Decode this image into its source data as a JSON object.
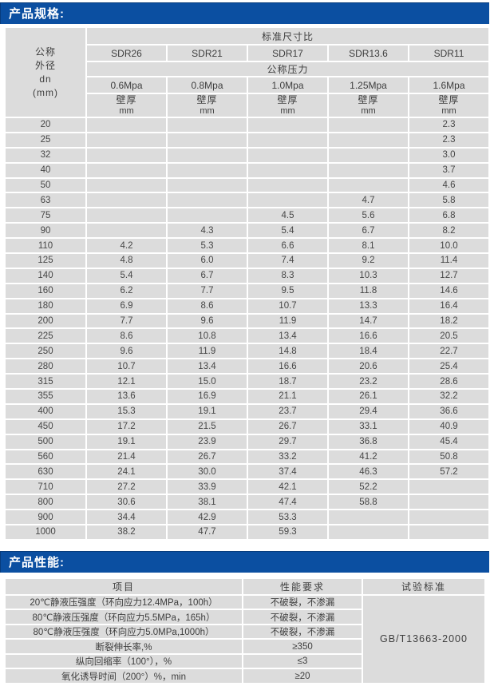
{
  "colors": {
    "section_bar_blue": "#0b4fa1",
    "section_bar_edge": "#083c7c",
    "cell_gray": "#dcdcdc",
    "page_background": "#ffffff",
    "title_text": "#ffffff",
    "body_text": "#3e3e3e"
  },
  "spec_section": {
    "title": "产品规格:",
    "table": {
      "corner_label_lines": [
        "公称",
        "外径",
        "dn",
        "(mm)"
      ],
      "sdr_group_label": "标准尺寸比",
      "sdr_labels": [
        "SDR26",
        "SDR21",
        "SDR17",
        "SDR13.6",
        "SDR11"
      ],
      "pressure_group_label": "公称压力",
      "pressure_labels": [
        "0.6Mpa",
        "0.8Mpa",
        "1.0Mpa",
        "1.25Mpa",
        "1.6Mpa"
      ],
      "thickness_label": "壁厚",
      "thickness_unit": "mm",
      "rows": [
        [
          "20",
          "",
          "",
          "",
          "",
          "2.3"
        ],
        [
          "25",
          "",
          "",
          "",
          "",
          "2.3"
        ],
        [
          "32",
          "",
          "",
          "",
          "",
          "3.0"
        ],
        [
          "40",
          "",
          "",
          "",
          "",
          "3.7"
        ],
        [
          "50",
          "",
          "",
          "",
          "",
          "4.6"
        ],
        [
          "63",
          "",
          "",
          "",
          "4.7",
          "5.8"
        ],
        [
          "75",
          "",
          "",
          "4.5",
          "5.6",
          "6.8"
        ],
        [
          "90",
          "",
          "4.3",
          "5.4",
          "6.7",
          "8.2"
        ],
        [
          "110",
          "4.2",
          "5.3",
          "6.6",
          "8.1",
          "10.0"
        ],
        [
          "125",
          "4.8",
          "6.0",
          "7.4",
          "9.2",
          "11.4"
        ],
        [
          "140",
          "5.4",
          "6.7",
          "8.3",
          "10.3",
          "12.7"
        ],
        [
          "160",
          "6.2",
          "7.7",
          "9.5",
          "11.8",
          "14.6"
        ],
        [
          "180",
          "6.9",
          "8.6",
          "10.7",
          "13.3",
          "16.4"
        ],
        [
          "200",
          "7.7",
          "9.6",
          "11.9",
          "14.7",
          "18.2"
        ],
        [
          "225",
          "8.6",
          "10.8",
          "13.4",
          "16.6",
          "20.5"
        ],
        [
          "250",
          "9.6",
          "11.9",
          "14.8",
          "18.4",
          "22.7"
        ],
        [
          "280",
          "10.7",
          "13.4",
          "16.6",
          "20.6",
          "25.4"
        ],
        [
          "315",
          "12.1",
          "15.0",
          "18.7",
          "23.2",
          "28.6"
        ],
        [
          "355",
          "13.6",
          "16.9",
          "21.1",
          "26.1",
          "32.2"
        ],
        [
          "400",
          "15.3",
          "19.1",
          "23.7",
          "29.4",
          "36.6"
        ],
        [
          "450",
          "17.2",
          "21.5",
          "26.7",
          "33.1",
          "40.9"
        ],
        [
          "500",
          "19.1",
          "23.9",
          "29.7",
          "36.8",
          "45.4"
        ],
        [
          "560",
          "21.4",
          "26.7",
          "33.2",
          "41.2",
          "50.8"
        ],
        [
          "630",
          "24.1",
          "30.0",
          "37.4",
          "46.3",
          "57.2"
        ],
        [
          "710",
          "27.2",
          "33.9",
          "42.1",
          "52.2",
          ""
        ],
        [
          "800",
          "30.6",
          "38.1",
          "47.4",
          "58.8",
          ""
        ],
        [
          "900",
          "34.4",
          "42.9",
          "53.3",
          "",
          ""
        ],
        [
          "1000",
          "38.2",
          "47.7",
          "59.3",
          "",
          ""
        ]
      ]
    }
  },
  "performance_section": {
    "title": "产品性能:",
    "table": {
      "headers": [
        "项目",
        "性能要求",
        "试验标准"
      ],
      "rows": [
        {
          "item": "20℃静液压强度（环向应力12.4MPa，100h）",
          "requirement": "不破裂，不渗漏"
        },
        {
          "item": "80℃静液压强度（环向应力5.5MPa，165h）",
          "requirement": "不破裂，不渗漏"
        },
        {
          "item": "80℃静液压强度（环向应力5.0MPa,1000h）",
          "requirement": "不破裂，不渗漏"
        },
        {
          "item": "断裂伸长率,%",
          "requirement": "≥350"
        },
        {
          "item": "纵向回缩率（100°），%",
          "requirement": "≤3"
        },
        {
          "item": "氧化诱导时间（200°）%，min",
          "requirement": "≥20"
        }
      ],
      "standard": "GB/T13663-2000"
    }
  }
}
